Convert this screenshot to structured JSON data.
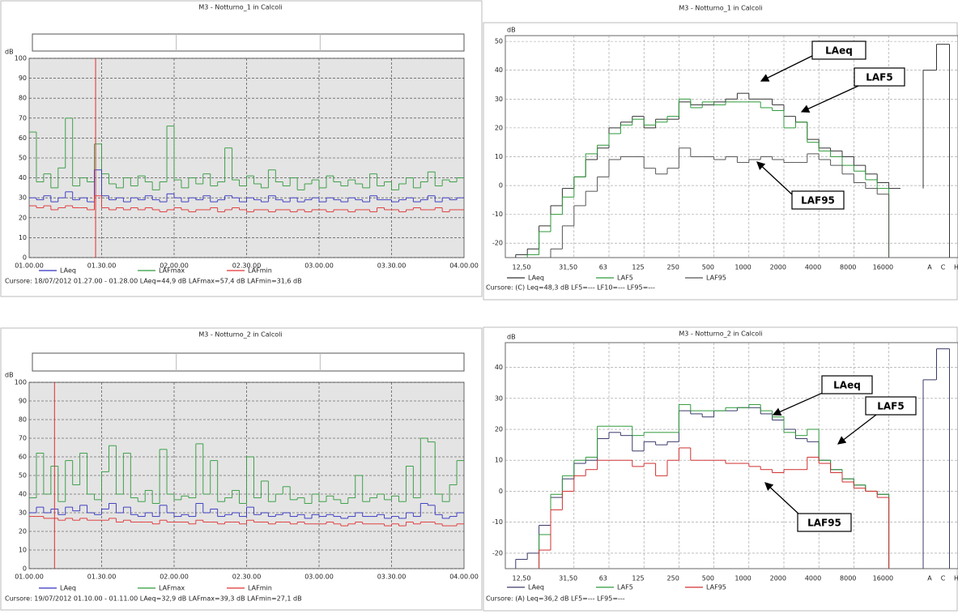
{
  "chart_data": [
    {
      "type": "line",
      "title": "M3 - Notturno_1 in Calcoli",
      "y_label": "dB",
      "cursor_text": "Cursore: 18/07/2012 01.27.00 - 01.28.00  LAeq=44,9 dB  LAFmax=57,4 dB  LAFmin=31,6 dB",
      "cursor_x": 27.5,
      "grid": true,
      "background": "#e4e4e4",
      "xlim": [
        0,
        180
      ],
      "xticks": [
        {
          "value": 0,
          "label": "01.00.00"
        },
        {
          "value": 30,
          "label": "01.30.00"
        },
        {
          "value": 60,
          "label": "02.00.00"
        },
        {
          "value": 90,
          "label": "02.30.00"
        },
        {
          "value": 120,
          "label": "03.00.00"
        },
        {
          "value": 150,
          "label": "03.30.00"
        },
        {
          "value": 180,
          "label": "04.00.00"
        }
      ],
      "ylim": [
        0,
        100
      ],
      "yticks": [
        0,
        10,
        20,
        30,
        40,
        50,
        60,
        70,
        80,
        90,
        100
      ],
      "x": [
        0,
        3,
        6,
        9,
        12,
        15,
        18,
        21,
        24,
        27,
        30,
        33,
        36,
        39,
        42,
        45,
        48,
        51,
        54,
        57,
        60,
        63,
        66,
        69,
        72,
        75,
        78,
        81,
        84,
        87,
        90,
        93,
        96,
        99,
        102,
        105,
        108,
        111,
        114,
        117,
        120,
        123,
        126,
        129,
        132,
        135,
        138,
        141,
        144,
        147,
        150,
        153,
        156,
        159,
        162,
        165,
        168,
        171,
        174,
        177
      ],
      "series": [
        {
          "name": "LAeq",
          "color": "#3030c0",
          "values": [
            30,
            29,
            31,
            28,
            30,
            33,
            29,
            30,
            28,
            44,
            31,
            29,
            30,
            28,
            30,
            29,
            31,
            29,
            28,
            32,
            30,
            28,
            30,
            29,
            31,
            28,
            29,
            31,
            30,
            28,
            30,
            29,
            28,
            31,
            29,
            28,
            30,
            28,
            29,
            30,
            28,
            30,
            29,
            28,
            30,
            29,
            28,
            31,
            29,
            29,
            28,
            29,
            30,
            28,
            29,
            31,
            28,
            30,
            29,
            30
          ]
        },
        {
          "name": "LAFmax",
          "color": "#2e9a3a",
          "values": [
            63,
            38,
            42,
            35,
            45,
            70,
            36,
            40,
            38,
            57,
            42,
            37,
            35,
            40,
            36,
            41,
            38,
            34,
            38,
            66,
            39,
            35,
            40,
            37,
            42,
            36,
            38,
            55,
            39,
            36,
            41,
            37,
            35,
            44,
            38,
            36,
            40,
            34,
            37,
            39,
            35,
            41,
            38,
            36,
            39,
            37,
            35,
            42,
            36,
            38,
            34,
            37,
            40,
            35,
            38,
            43,
            36,
            39,
            38,
            40
          ]
        },
        {
          "name": "LAFmin",
          "color": "#e03030",
          "values": [
            26,
            25,
            26,
            24,
            25,
            26,
            25,
            25,
            24,
            31,
            25,
            24,
            25,
            24,
            25,
            24,
            25,
            24,
            23,
            24,
            25,
            24,
            23,
            24,
            24,
            25,
            23,
            24,
            25,
            24,
            23,
            24,
            24,
            23,
            24,
            24,
            23,
            24,
            23,
            24,
            24,
            23,
            24,
            24,
            23,
            24,
            24,
            23,
            25,
            24,
            24,
            23,
            24,
            25,
            24,
            24,
            25,
            23,
            24,
            24
          ]
        }
      ]
    },
    {
      "type": "step",
      "title": "M3 - Notturno_1 in Calcoli",
      "y_label": "dB",
      "cursor_text": "Cursore: (C) Leq=48,3 dB  LF5=---  LF10=---  LF95=---",
      "grid": true,
      "background": "#ffffff",
      "categories": [
        "12,50",
        null,
        null,
        null,
        "31,50",
        null,
        null,
        "63",
        null,
        null,
        "125",
        null,
        null,
        "250",
        null,
        null,
        "500",
        null,
        null,
        "1000",
        null,
        null,
        "2000",
        null,
        null,
        "4000",
        null,
        null,
        "8000",
        null,
        null,
        "16000",
        null,
        "A",
        "C",
        "H"
      ],
      "ylim": [
        -25,
        52
      ],
      "yticks": [
        -20,
        -10,
        0,
        10,
        20,
        30,
        40,
        50
      ],
      "series": [
        {
          "name": "LAeq",
          "color": "#333333",
          "values": [
            -24,
            -22,
            -14,
            -7,
            -1,
            3,
            9,
            13,
            20,
            22,
            24,
            20,
            23,
            23,
            29,
            28,
            28,
            29,
            30,
            32,
            30,
            30,
            28,
            24,
            22,
            16,
            13,
            12,
            10,
            7,
            4,
            1,
            -1,
            40,
            49,
            null
          ]
        },
        {
          "name": "LAF5",
          "color": "#2e9a3a",
          "values": [
            null,
            -24,
            -16,
            -10,
            -4,
            3,
            11,
            14,
            18,
            21,
            23,
            21,
            22,
            24,
            30,
            27,
            29,
            28,
            29,
            29,
            29,
            27,
            26,
            20,
            22,
            15,
            12,
            10,
            7,
            5,
            2,
            -1,
            null,
            null,
            null,
            null
          ]
        },
        {
          "name": "LAF95",
          "color": "#555555",
          "values": [
            null,
            null,
            null,
            -22,
            -14,
            -7,
            -2,
            3,
            9,
            10,
            10,
            6,
            4,
            6,
            13,
            10,
            10,
            9,
            10,
            8,
            9,
            10,
            9,
            8,
            8,
            11,
            9,
            7,
            4,
            1,
            -1,
            -3,
            null,
            null,
            null,
            null
          ]
        }
      ],
      "annotations": [
        "LAeq",
        "LAF5",
        "LAF95"
      ]
    },
    {
      "type": "line",
      "title": "M3 - Notturno_2 in Calcoli",
      "y_label": "dB",
      "cursor_text": "Cursore: 19/07/2012 01.10.00 - 01.11.00  LAeq=32,9 dB  LAFmax=39,3 dB  LAFmin=27,1 dB",
      "cursor_x": 10.5,
      "grid": true,
      "background": "#e4e4e4",
      "xlim": [
        0,
        180
      ],
      "xticks": [
        {
          "value": 0,
          "label": "01.00.00"
        },
        {
          "value": 30,
          "label": "01.30.00"
        },
        {
          "value": 60,
          "label": "02.00.00"
        },
        {
          "value": 90,
          "label": "02.30.00"
        },
        {
          "value": 120,
          "label": "03.00.00"
        },
        {
          "value": 150,
          "label": "03.30.00"
        },
        {
          "value": 180,
          "label": "04.00.00"
        }
      ],
      "ylim": [
        0,
        100
      ],
      "yticks": [
        0,
        10,
        20,
        30,
        40,
        50,
        60,
        70,
        80,
        90,
        100
      ],
      "x": [
        0,
        3,
        6,
        9,
        12,
        15,
        18,
        21,
        24,
        27,
        30,
        33,
        36,
        39,
        42,
        45,
        48,
        51,
        54,
        57,
        60,
        63,
        66,
        69,
        72,
        75,
        78,
        81,
        84,
        87,
        90,
        93,
        96,
        99,
        102,
        105,
        108,
        111,
        114,
        117,
        120,
        123,
        126,
        129,
        132,
        135,
        138,
        141,
        144,
        147,
        150,
        153,
        156,
        159,
        162,
        165,
        168,
        171,
        174,
        177
      ],
      "series": [
        {
          "name": "LAeq",
          "color": "#3030c0",
          "values": [
            30,
            33,
            30,
            32,
            29,
            33,
            31,
            34,
            30,
            29,
            32,
            35,
            30,
            33,
            29,
            28,
            30,
            28,
            34,
            30,
            28,
            29,
            28,
            35,
            30,
            32,
            28,
            29,
            30,
            28,
            33,
            29,
            30,
            28,
            29,
            30,
            28,
            29,
            27,
            29,
            28,
            29,
            28,
            27,
            28,
            30,
            28,
            28,
            29,
            27,
            28,
            27,
            30,
            28,
            35,
            34,
            29,
            27,
            28,
            30
          ]
        },
        {
          "name": "LAFmax",
          "color": "#2e9a3a",
          "values": [
            38,
            62,
            40,
            55,
            36,
            58,
            45,
            62,
            40,
            37,
            52,
            66,
            40,
            62,
            38,
            36,
            42,
            35,
            64,
            40,
            37,
            39,
            38,
            67,
            40,
            58,
            36,
            38,
            42,
            35,
            60,
            38,
            47,
            36,
            40,
            44,
            37,
            38,
            35,
            40,
            36,
            39,
            37,
            35,
            38,
            50,
            36,
            38,
            40,
            37,
            39,
            36,
            55,
            38,
            70,
            68,
            40,
            36,
            45,
            58
          ]
        },
        {
          "name": "LAFmin",
          "color": "#e03030",
          "values": [
            28,
            28,
            27,
            27,
            26,
            27,
            26,
            27,
            26,
            26,
            26,
            27,
            25,
            26,
            25,
            25,
            25,
            24,
            26,
            25,
            25,
            25,
            24,
            26,
            25,
            25,
            24,
            25,
            25,
            24,
            26,
            25,
            25,
            24,
            25,
            25,
            24,
            25,
            24,
            24,
            24,
            25,
            24,
            23,
            24,
            25,
            24,
            24,
            24,
            23,
            24,
            23,
            25,
            24,
            25,
            25,
            24,
            23,
            23,
            24
          ]
        }
      ]
    },
    {
      "type": "step",
      "title": "M3 - Notturno_2 in Calcoli",
      "y_label": "dB",
      "cursor_text": "Cursore: (A) Leq=36,2 dB  LF5=---  LF95=---",
      "grid": true,
      "background": "#ffffff",
      "categories": [
        "12,50",
        null,
        null,
        null,
        "31,50",
        null,
        null,
        "63",
        null,
        null,
        "125",
        null,
        null,
        "250",
        null,
        null,
        "500",
        null,
        null,
        "1000",
        null,
        null,
        "2000",
        null,
        null,
        "4000",
        null,
        null,
        "8000",
        null,
        null,
        "16000",
        null,
        "A",
        "C",
        "H"
      ],
      "ylim": [
        -25,
        48
      ],
      "yticks": [
        -20,
        -10,
        0,
        10,
        20,
        30,
        40
      ],
      "series": [
        {
          "name": "LAeq",
          "color": "#3a3a6a",
          "values": [
            -22,
            -20,
            -11,
            -2,
            4,
            9,
            10,
            17,
            19,
            18,
            13,
            16,
            15,
            16,
            26,
            25,
            24,
            26,
            26,
            27,
            27,
            25,
            23,
            20,
            17,
            16,
            10,
            7,
            4,
            2,
            0,
            -1,
            null,
            36,
            46,
            null
          ]
        },
        {
          "name": "LAF5",
          "color": "#2e9a3a",
          "values": [
            null,
            null,
            -14,
            -1,
            5,
            10,
            11,
            21,
            21,
            21,
            18,
            19,
            19,
            19,
            28,
            26,
            26,
            26,
            27,
            27,
            28,
            26,
            24,
            19,
            18,
            20,
            10,
            7,
            4,
            2,
            0,
            -1,
            null,
            null,
            null,
            null
          ]
        },
        {
          "name": "LAF95",
          "color": "#d03030",
          "values": [
            null,
            null,
            -19,
            -6,
            0,
            5,
            7,
            10,
            10,
            10,
            8,
            9,
            5,
            10,
            14,
            10,
            10,
            10,
            9,
            9,
            8,
            7,
            6,
            7,
            7,
            11,
            9,
            6,
            3,
            1,
            0,
            -2,
            null,
            null,
            null,
            null
          ]
        }
      ],
      "annotations": [
        "LAeq",
        "LAF5",
        "LAF95"
      ]
    }
  ]
}
